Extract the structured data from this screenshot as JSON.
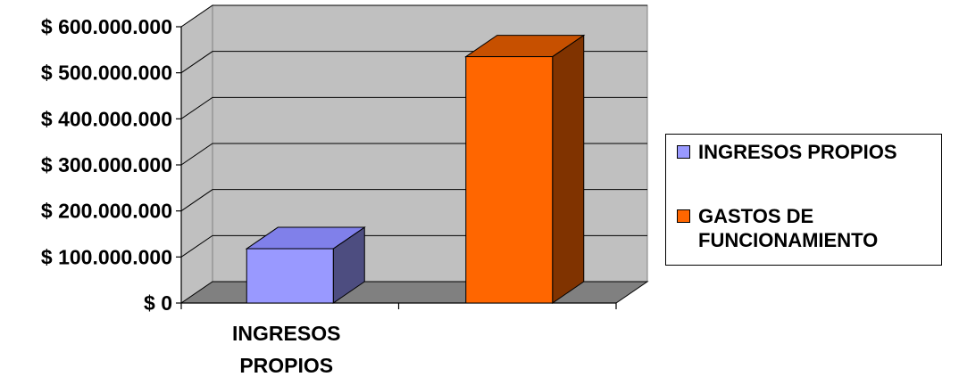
{
  "chart_data": {
    "type": "bar",
    "categories": [
      "INGRESOS PROPIOS",
      ""
    ],
    "category_label_lines": [
      [
        "INGRESOS",
        "PROPIOS"
      ],
      []
    ],
    "series": [
      {
        "name": "INGRESOS PROPIOS",
        "values": [
          118000000,
          null
        ],
        "color": "#9999FF"
      },
      {
        "name": "GASTOS DE FUNCIONAMIENTO",
        "values": [
          null,
          535000000
        ],
        "color": "#FF6600"
      }
    ],
    "ylim": [
      0,
      600000000
    ],
    "yticks": [
      0,
      100000000,
      200000000,
      300000000,
      400000000,
      500000000,
      600000000
    ],
    "ytick_labels": [
      "$ 0",
      "$ 100.000.000",
      "$ 200.000.000",
      "$ 300.000.000",
      "$ 400.000.000",
      "$ 500.000.000",
      "$ 600.000.000"
    ],
    "three_d": true,
    "grid": true,
    "wall_color": "#C0C0C0",
    "floor_color": "#808080",
    "legend_position": "right",
    "legend": [
      {
        "label_lines": [
          "INGRESOS PROPIOS"
        ],
        "color": "#9999FF"
      },
      {
        "label_lines": [
          "GASTOS DE",
          "FUNCIONAMIENTO"
        ],
        "color": "#FF6600"
      }
    ]
  }
}
